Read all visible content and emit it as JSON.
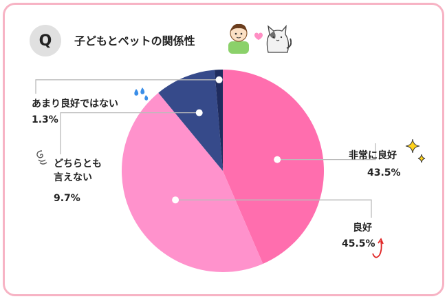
{
  "header": {
    "q_label": "Q",
    "title": "子どもとペットの関係性"
  },
  "colors": {
    "border": "#f7b3c4",
    "slice_very_good": "#ff6eae",
    "slice_good": "#ff92cc",
    "slice_neither": "#364a8a",
    "slice_not_good": "#1f2c5e",
    "leader": "#bbbbbb"
  },
  "chart_data": {
    "type": "pie",
    "title": "子どもとペットの関係性",
    "start": "12 o'clock, clockwise",
    "slices": [
      {
        "label": "非常に良好",
        "value": 43.5,
        "display": "43.5%"
      },
      {
        "label": "良好",
        "value": 45.5,
        "display": "45.5%"
      },
      {
        "label": "どちらとも言えない",
        "label_lines": [
          "どちらとも",
          "言えない"
        ],
        "value": 9.7,
        "display": "9.7%"
      },
      {
        "label": "あまり良好ではない",
        "value": 1.3,
        "display": "1.3%"
      }
    ]
  }
}
